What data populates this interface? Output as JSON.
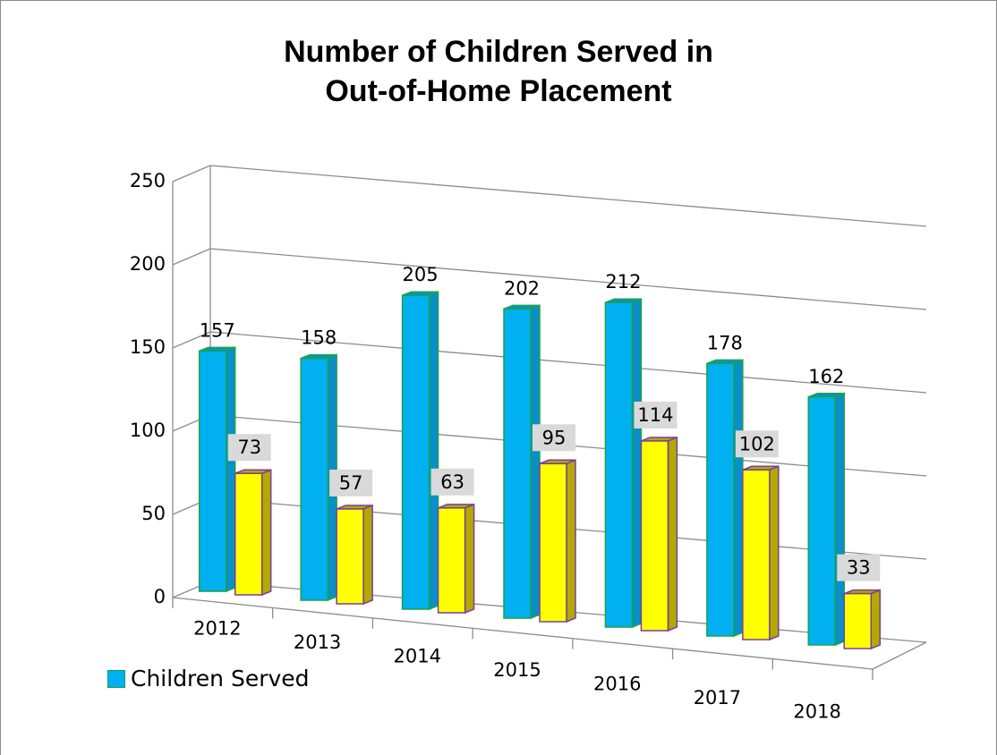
{
  "chart_data": {
    "type": "bar",
    "title": "Number of Children Served in Out-of-Home Placement",
    "title_lines": [
      "Number of Children Served in",
      "Out-of-Home Placement"
    ],
    "categories": [
      "2012",
      "2013",
      "2014",
      "2015",
      "2016",
      "2017",
      "2018"
    ],
    "series": [
      {
        "name": "Children Served",
        "values": [
          157,
          158,
          205,
          202,
          212,
          178,
          162
        ],
        "color": "#00b0f0",
        "side": "#0a8fc8",
        "edge": "#1aa34a"
      },
      {
        "values": [
          73,
          57,
          63,
          95,
          114,
          102,
          33
        ],
        "color": "#ffff00",
        "side": "#b3a900",
        "edge": "#7a3ea0"
      }
    ],
    "y_ticks": [
      "0",
      "50",
      "100",
      "150",
      "200",
      "250"
    ],
    "ylim": [
      0,
      250
    ],
    "grid": true,
    "legend": "bottom-left"
  }
}
